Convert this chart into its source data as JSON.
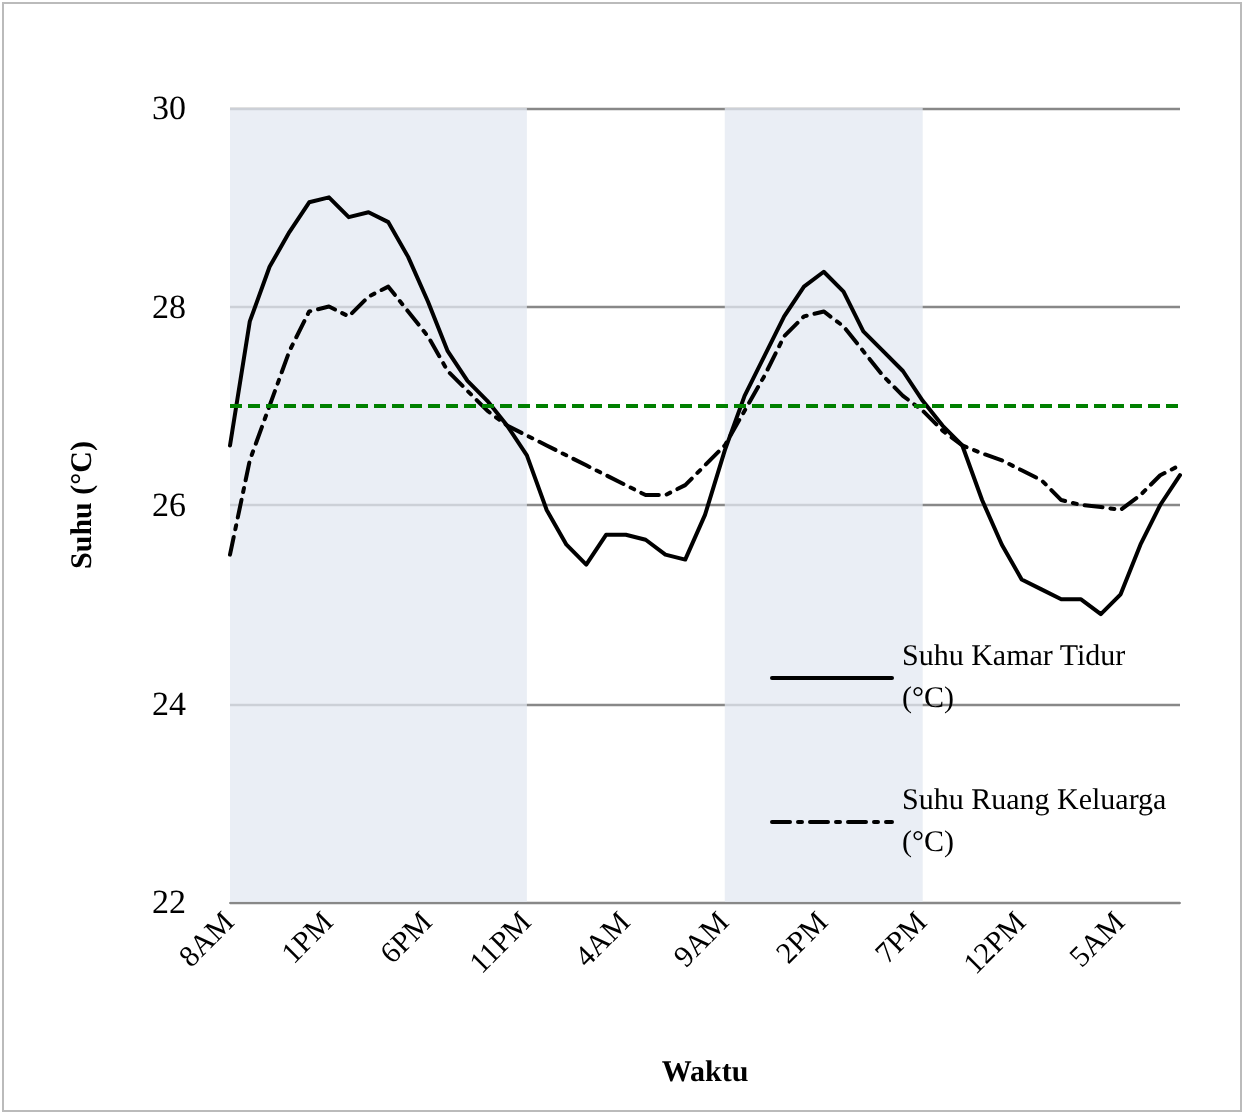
{
  "chart_data": {
    "type": "line",
    "xlabel": "Waktu",
    "ylabel": "Suhu (°C)",
    "categories": [
      "8AM",
      null,
      null,
      null,
      null,
      "1PM",
      null,
      null,
      null,
      null,
      "6PM",
      null,
      null,
      null,
      null,
      "11PM",
      null,
      null,
      null,
      null,
      "4AM",
      null,
      null,
      null,
      null,
      "9AM",
      null,
      null,
      null,
      null,
      "2PM",
      null,
      null,
      null,
      null,
      "7PM",
      null,
      null,
      null,
      null,
      "12PM",
      null,
      null,
      null,
      null,
      "5AM",
      null,
      null,
      null
    ],
    "series": [
      {
        "name": "Suhu Kamar Tidur (°C)",
        "color": "#000000",
        "line_style": "solid",
        "values": [
          26.6,
          27.85,
          28.4,
          28.75,
          29.05,
          29.1,
          28.9,
          28.95,
          28.85,
          28.5,
          28.05,
          27.55,
          27.25,
          27.05,
          26.8,
          26.5,
          25.95,
          25.6,
          25.4,
          25.7,
          25.7,
          25.65,
          25.5,
          25.45,
          25.9,
          26.55,
          27.1,
          27.5,
          27.9,
          28.2,
          28.35,
          28.15,
          27.75,
          27.55,
          27.35,
          27.05,
          26.8,
          26.6,
          26.05,
          25.6,
          25.25,
          25.15,
          25.05,
          25.05,
          24.9,
          25.1,
          25.6,
          26.0,
          26.3
        ]
      },
      {
        "name": "Suhu Ruang Keluarga (°C)",
        "color": "#000000",
        "line_style": "dashed",
        "values": [
          25.5,
          26.45,
          27.0,
          27.55,
          27.95,
          28.0,
          27.9,
          28.1,
          28.2,
          27.95,
          27.7,
          27.35,
          27.15,
          26.95,
          26.8,
          26.7,
          26.6,
          26.5,
          26.4,
          26.3,
          26.2,
          26.1,
          26.1,
          26.2,
          26.4,
          26.6,
          26.95,
          27.3,
          27.7,
          27.9,
          27.95,
          27.8,
          27.55,
          27.3,
          27.1,
          26.95,
          26.75,
          26.6,
          26.52,
          26.45,
          26.35,
          26.25,
          26.05,
          26.0,
          25.98,
          25.95,
          26.1,
          26.3,
          26.4
        ]
      }
    ],
    "ylim": [
      22,
      30
    ],
    "yticks": [
      22,
      24,
      26,
      28,
      30
    ],
    "grid": "y",
    "legend": "bottom right",
    "marker": "none",
    "bands": [
      {
        "axis": "x",
        "from": "8AM",
        "to": "11PM",
        "color": "#e3e8f2"
      },
      {
        "axis": "x",
        "from": "9AM",
        "to": "7PM",
        "color": "#e3e8f2"
      }
    ],
    "ref_lines": [
      {
        "axis": "y",
        "value": 27,
        "color": "#008000",
        "line_style": "dashed"
      }
    ]
  }
}
